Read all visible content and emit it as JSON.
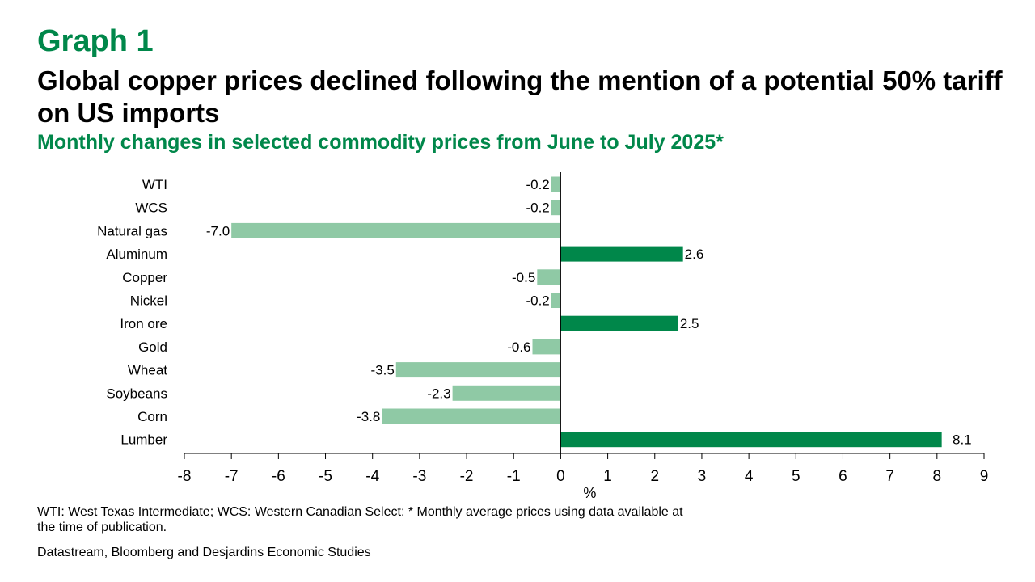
{
  "graph_label": "Graph 1",
  "title": "Global copper prices declined following the mention of a potential 50% tariff on US imports",
  "subtitle": "Monthly changes in selected commodity prices from June to July 2025*",
  "footnote": "WTI: West Texas Intermediate; WCS: Western Canadian Select; * Monthly average prices using data available at the time of publication.",
  "source": "Datastream, Bloomberg and Desjardins Economic Studies",
  "colors": {
    "positive": "#00874a",
    "negative": "#8fc9a5",
    "brand": "#00874a"
  },
  "chart_data": {
    "type": "bar",
    "orientation": "horizontal",
    "categories": [
      "WTI",
      "WCS",
      "Natural gas",
      "Aluminum",
      "Copper",
      "Nickel",
      "Iron ore",
      "Gold",
      "Wheat",
      "Soybeans",
      "Corn",
      "Lumber"
    ],
    "values": [
      -0.2,
      -0.2,
      -7.0,
      2.6,
      -0.5,
      -0.2,
      2.5,
      -0.6,
      -3.5,
      -2.3,
      -3.8,
      8.1
    ],
    "data_labels": [
      "-0.2",
      "-0.2",
      "-7.0",
      "2.6",
      "-0.5",
      "-0.2",
      "2.5",
      "-0.6",
      "-3.5",
      "-2.3",
      "-3.8",
      "8.1"
    ],
    "xlabel": "%",
    "ylabel": "",
    "xlim": [
      -8,
      9
    ],
    "xticks": [
      -8,
      -7,
      -6,
      -5,
      -4,
      -3,
      -2,
      -1,
      0,
      1,
      2,
      3,
      4,
      5,
      6,
      7,
      8,
      9
    ],
    "grid": false,
    "legend": "none"
  }
}
